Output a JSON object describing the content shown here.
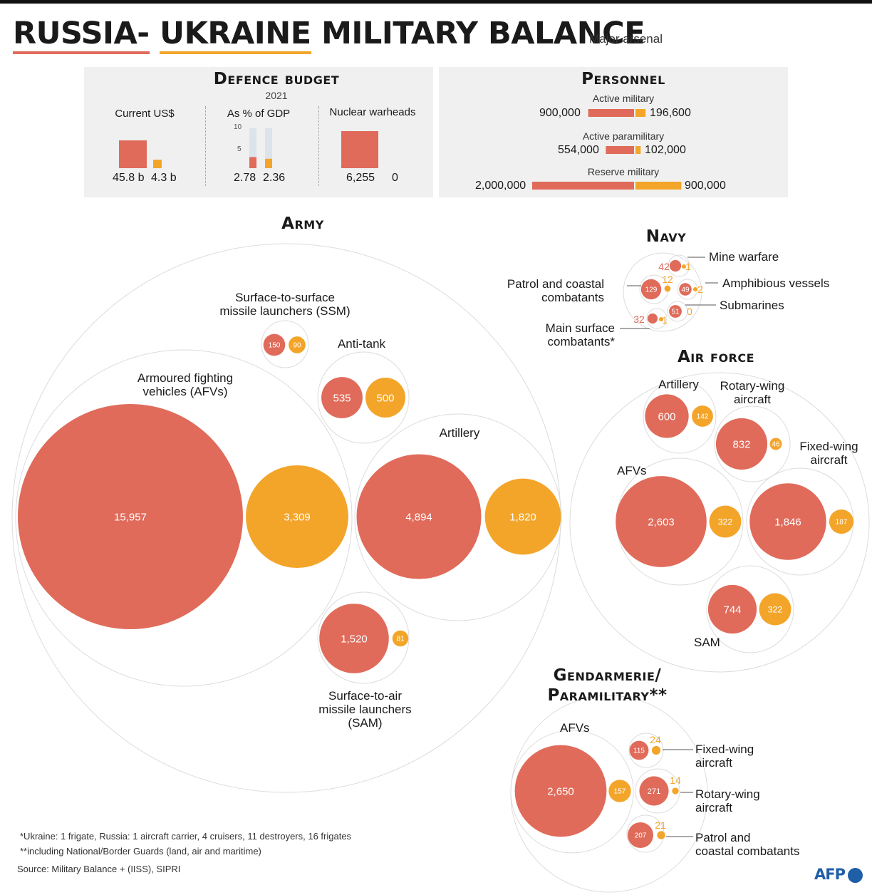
{
  "title": {
    "russia": "RUSSIA-",
    "ukraine": "UKRAINE",
    "rest": "MILITARY BALANCE"
  },
  "subtitle": "Major arsenal",
  "colors": {
    "russia": "#e06b5a",
    "ukraine": "#f3a52a",
    "ring": "#d9d9d9",
    "panel": "#f0f0f0"
  },
  "budget": {
    "heading": "Defence budget",
    "year": "2021",
    "current_label": "Current US$",
    "current": {
      "russia": 45.8,
      "ukraine": 4.3,
      "russia_text": "45.8 b",
      "ukraine_text": "4.3 b"
    },
    "gdp_label": "As % of GDP",
    "gdp": {
      "russia": 2.78,
      "ukraine": 2.36,
      "russia_text": "2.78",
      "ukraine_text": "2.36",
      "axis_max": 10,
      "ticks": [
        "10",
        "5"
      ]
    },
    "nuclear_label": "Nuclear warheads",
    "nuclear": {
      "russia": 6255,
      "ukraine": 0,
      "russia_text": "6,255",
      "ukraine_text": "0"
    }
  },
  "personnel": {
    "heading": "Personnel",
    "rows": [
      {
        "label": "Active military",
        "russia": 900000,
        "ukraine": 196600,
        "russia_text": "900,000",
        "ukraine_text": "196,600"
      },
      {
        "label": "Active paramilitary",
        "russia": 554000,
        "ukraine": 102000,
        "russia_text": "554,000",
        "ukraine_text": "102,000"
      },
      {
        "label": "Reserve military",
        "russia": 2000000,
        "ukraine": 900000,
        "russia_text": "2,000,000",
        "ukraine_text": "900,000"
      }
    ]
  },
  "army": {
    "heading": "Army",
    "afv_label_1": "Armoured fighting",
    "afv_label_2": "vehicles (AFVs)",
    "ssm_label_1": "Surface-to-surface",
    "ssm_label_2": "missile launchers (SSM)",
    "at_label": "Anti-tank",
    "art_label": "Artillery",
    "sam_label_1": "Surface-to-air",
    "sam_label_2": "missile launchers",
    "sam_label_3": "(SAM)"
  },
  "navy": {
    "heading": "Navy",
    "mine_label": "Mine warfare",
    "amph_label": "Amphibious vessels",
    "patrol_label_1": "Patrol and coastal",
    "patrol_label_2": "combatants",
    "sub_label": "Submarines",
    "main_label_1": "Main surface",
    "main_label_2": "combatants*"
  },
  "airforce": {
    "heading": "Air force",
    "art_label": "Artillery",
    "rotary_label_1": "Rotary-wing",
    "rotary_label_2": "aircraft",
    "fixed_label_1": "Fixed-wing",
    "fixed_label_2": "aircraft",
    "afv_label": "AFVs",
    "sam_label": "SAM"
  },
  "gendarmerie": {
    "heading_1": "Gendarmerie/",
    "heading_2": "Paramilitary**",
    "afv_label": "AFVs",
    "fixed_label_1": "Fixed-wing",
    "fixed_label_2": "aircraft",
    "rotary_label_1": "Rotary-wing",
    "rotary_label_2": "aircraft",
    "patrol_label_1": "Patrol and",
    "patrol_label_2": "coastal combatants"
  },
  "chart_data": [
    {
      "type": "bubble",
      "title": "Army",
      "series_order": [
        "Russia",
        "Ukraine"
      ],
      "categories": [
        "Armoured fighting vehicles (AFVs)",
        "Surface-to-surface missile launchers (SSM)",
        "Anti-tank",
        "Artillery",
        "Surface-to-air missile launchers (SAM)"
      ],
      "russia": [
        15957,
        150,
        535,
        4894,
        1520
      ],
      "ukraine": [
        3309,
        90,
        500,
        1820,
        81
      ],
      "russia_text": [
        "15,957",
        "150",
        "535",
        "4,894",
        "1,520"
      ],
      "ukraine_text": [
        "3,309",
        "90",
        "500",
        "1,820",
        "81"
      ]
    },
    {
      "type": "bubble",
      "title": "Navy",
      "categories": [
        "Mine warfare",
        "Patrol and coastal combatants",
        "Amphibious vessels",
        "Submarines",
        "Main surface combatants*"
      ],
      "russia": [
        42,
        129,
        49,
        51,
        32
      ],
      "ukraine": [
        1,
        12,
        2,
        0,
        1
      ],
      "russia_text": [
        "42",
        "129",
        "49",
        "51",
        "32"
      ],
      "ukraine_text": [
        "1",
        "12",
        "2",
        "0",
        "1"
      ]
    },
    {
      "type": "bubble",
      "title": "Air force",
      "categories": [
        "Artillery",
        "Rotary-wing aircraft",
        "Fixed-wing aircraft",
        "AFVs",
        "SAM"
      ],
      "russia": [
        600,
        832,
        1846,
        2603,
        744
      ],
      "ukraine": [
        142,
        46,
        187,
        322,
        322
      ],
      "russia_text": [
        "600",
        "832",
        "1,846",
        "2,603",
        "744"
      ],
      "ukraine_text": [
        "142",
        "46",
        "187",
        "322",
        "322"
      ]
    },
    {
      "type": "bubble",
      "title": "Gendarmerie/Paramilitary**",
      "categories": [
        "AFVs",
        "Fixed-wing aircraft",
        "Rotary-wing aircraft",
        "Patrol and coastal combatants"
      ],
      "russia": [
        2650,
        115,
        271,
        207
      ],
      "ukraine": [
        157,
        24,
        14,
        21
      ],
      "russia_text": [
        "2,650",
        "115",
        "271",
        "207"
      ],
      "ukraine_text": [
        "157",
        "24",
        "14",
        "21"
      ]
    }
  ],
  "footnotes": {
    "note1": "*Ukraine: 1 frigate, Russia: 1 aircraft carrier, 4 cruisers, 11 destroyers, 16 frigates",
    "note2": "**including National/Border Guards (land, air and maritime)",
    "source": "Source: Military Balance + (IISS), SIPRI"
  },
  "logo": "AFP"
}
